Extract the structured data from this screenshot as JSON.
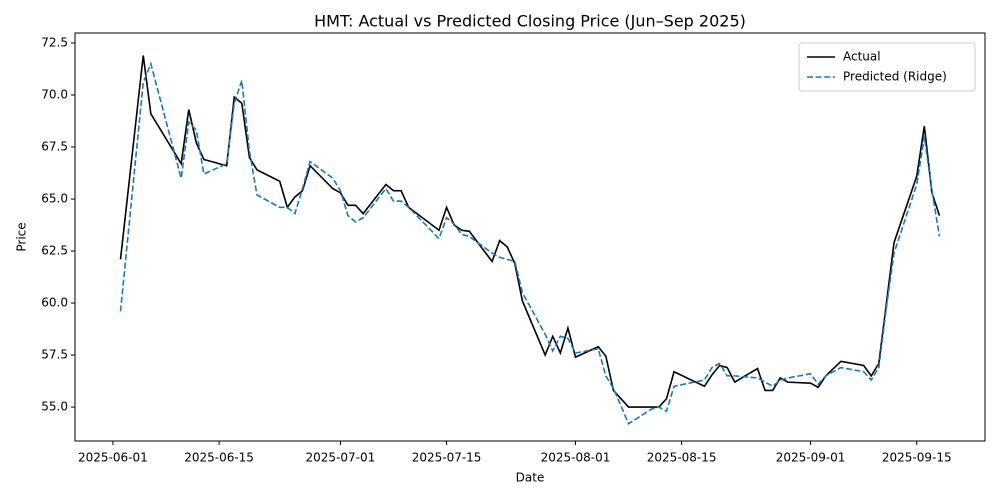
{
  "chart_data": {
    "type": "line",
    "title": "HMT: Actual vs Predicted Closing Price (Jun–Sep 2025)",
    "x_label": "Date",
    "y_label": "Price",
    "x": [
      "2025-06-02",
      "2025-06-05",
      "2025-06-06",
      "2025-06-10",
      "2025-06-11",
      "2025-06-12",
      "2025-06-13",
      "2025-06-16",
      "2025-06-17",
      "2025-06-18",
      "2025-06-19",
      "2025-06-20",
      "2025-06-23",
      "2025-06-24",
      "2025-06-25",
      "2025-06-26",
      "2025-06-27",
      "2025-06-30",
      "2025-07-01",
      "2025-07-02",
      "2025-07-03",
      "2025-07-04",
      "2025-07-07",
      "2025-07-08",
      "2025-07-09",
      "2025-07-10",
      "2025-07-14",
      "2025-07-15",
      "2025-07-16",
      "2025-07-17",
      "2025-07-18",
      "2025-07-21",
      "2025-07-22",
      "2025-07-23",
      "2025-07-24",
      "2025-07-25",
      "2025-07-28",
      "2025-07-29",
      "2025-07-30",
      "2025-07-31",
      "2025-08-01",
      "2025-08-04",
      "2025-08-05",
      "2025-08-06",
      "2025-08-08",
      "2025-08-11",
      "2025-08-12",
      "2025-08-13",
      "2025-08-14",
      "2025-08-18",
      "2025-08-19",
      "2025-08-20",
      "2025-08-21",
      "2025-08-22",
      "2025-08-25",
      "2025-08-26",
      "2025-08-27",
      "2025-08-28",
      "2025-08-29",
      "2025-09-01",
      "2025-09-02",
      "2025-09-03",
      "2025-09-05",
      "2025-09-08",
      "2025-09-09",
      "2025-09-10",
      "2025-09-11",
      "2025-09-12",
      "2025-09-15",
      "2025-09-16",
      "2025-09-17",
      "2025-09-18"
    ],
    "series": [
      {
        "name": "Actual",
        "color": "#000000",
        "dash": "solid",
        "values": [
          62.1,
          71.9,
          69.1,
          66.7,
          69.3,
          67.7,
          66.9,
          66.6,
          69.9,
          69.6,
          67.0,
          66.4,
          65.85,
          64.6,
          65.1,
          65.4,
          66.6,
          65.5,
          65.3,
          64.7,
          64.7,
          64.3,
          65.7,
          65.4,
          65.4,
          64.6,
          63.5,
          64.6,
          63.75,
          63.5,
          63.45,
          62.0,
          63.0,
          62.7,
          61.9,
          60.1,
          57.5,
          58.4,
          57.6,
          58.8,
          57.4,
          57.9,
          57.45,
          55.8,
          55.0,
          55.0,
          55.0,
          55.4,
          56.7,
          56.0,
          56.55,
          57.0,
          56.9,
          56.2,
          56.85,
          55.8,
          55.8,
          56.4,
          56.2,
          56.15,
          55.95,
          56.5,
          57.2,
          57.0,
          56.5,
          57.1,
          60.0,
          62.9,
          66.1,
          68.5,
          65.3,
          64.2
        ]
      },
      {
        "name": "Predicted (Ridge)",
        "color": "#1f77b4",
        "dash": "dashed",
        "values": [
          59.6,
          70.6,
          71.5,
          66.0,
          68.7,
          68.3,
          66.2,
          66.7,
          69.6,
          70.7,
          67.3,
          65.2,
          64.6,
          64.6,
          64.3,
          65.5,
          66.8,
          66.0,
          65.4,
          64.2,
          63.9,
          64.1,
          65.5,
          64.9,
          64.9,
          64.6,
          63.1,
          64.1,
          63.8,
          63.3,
          63.2,
          62.4,
          62.2,
          62.1,
          62.0,
          60.5,
          58.5,
          57.7,
          58.4,
          58.3,
          57.6,
          57.8,
          56.5,
          55.9,
          54.2,
          54.9,
          55.0,
          54.8,
          56.0,
          56.3,
          56.9,
          57.1,
          56.5,
          56.5,
          56.4,
          56.2,
          56.0,
          56.3,
          56.4,
          56.6,
          56.1,
          56.5,
          56.9,
          56.7,
          56.3,
          56.9,
          59.8,
          62.4,
          65.7,
          68.0,
          65.4,
          63.2
        ]
      }
    ],
    "xlim": [
      "2025-05-27",
      "2025-09-24"
    ],
    "xticks": [
      "2025-06-01",
      "2025-06-15",
      "2025-07-01",
      "2025-07-15",
      "2025-08-01",
      "2025-08-15",
      "2025-09-01",
      "2025-09-15"
    ],
    "ylim": [
      53.37,
      72.98
    ],
    "yticks": [
      {
        "value": 55,
        "label": "55.0"
      },
      {
        "value": 57.5,
        "label": "57.5"
      },
      {
        "value": 60,
        "label": "60.0"
      },
      {
        "value": 62.5,
        "label": "62.5"
      },
      {
        "value": 65,
        "label": "65.0"
      },
      {
        "value": 67.5,
        "label": "67.5"
      },
      {
        "value": 70,
        "label": "70.0"
      },
      {
        "value": 72.5,
        "label": "72.5"
      }
    ],
    "grid": false,
    "legend": "upper right"
  }
}
